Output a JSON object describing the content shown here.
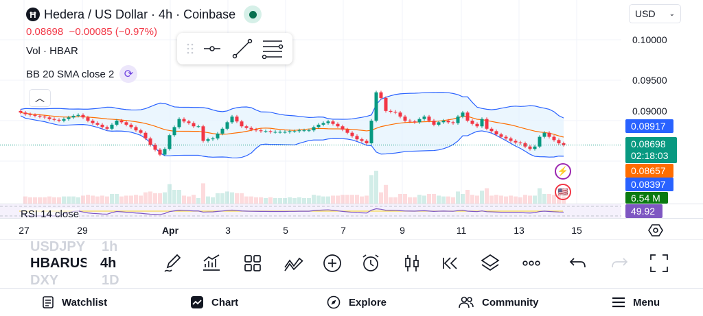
{
  "header": {
    "title": "Hedera / US Dollar · 4h · Coinbase",
    "logo_letter": "Ħ",
    "price_line": "0.08698  −0.00085 (−0.97%)",
    "vol_label": "Vol · HBAR",
    "bb_label": "BB 20 SMA close 2",
    "rsi_label": "RSI 14 close"
  },
  "currency": "USD",
  "colors": {
    "up": "#089981",
    "down": "#f23645",
    "bb_line": "#2962ff",
    "bb_fill": "#e3f2fd",
    "sma": "#ff6d00",
    "rsi": "#7e57c2",
    "rsi_ma": "#f7d94c"
  },
  "price_axis": {
    "labels": [
      "0.10000",
      "0.09500",
      "0.09000"
    ]
  },
  "tags": {
    "bb_upper": "0.08917",
    "last_price": "0.08698",
    "countdown": "02:18:03",
    "bb_basis": "0.08657",
    "bb_lower": "0.08397",
    "volume": "6.54 M",
    "rsi": "49.92"
  },
  "time_axis": [
    "27",
    "29",
    "Apr",
    "3",
    "5",
    "7",
    "9",
    "11",
    "13",
    "15"
  ],
  "symbols": {
    "prev": "USDJPY",
    "current": "HBARUSD",
    "next": "DXY",
    "prev_tf": "1h",
    "current_tf": "4h",
    "next_tf": "1D"
  },
  "toolbar_icons": [
    "pencil-icon",
    "indicators-icon",
    "grid-icon",
    "patterns-icon",
    "add-icon",
    "alarm-icon",
    "candles-icon",
    "replay-icon",
    "layers-icon",
    "more-icon",
    "undo-icon",
    "redo-icon",
    "fullscreen-icon"
  ],
  "nav": [
    {
      "label": "Watchlist",
      "icon": "watchlist-icon"
    },
    {
      "label": "Chart",
      "icon": "chart-icon"
    },
    {
      "label": "Explore",
      "icon": "compass-icon"
    },
    {
      "label": "Community",
      "icon": "community-icon"
    },
    {
      "label": "Menu",
      "icon": "menu-icon"
    }
  ],
  "chart_data": {
    "type": "candlestick",
    "interval": "4h",
    "y_range": [
      0.0845,
      0.1005
    ],
    "closes": [
      0.091,
      0.0908,
      0.0907,
      0.0906,
      0.0905,
      0.0904,
      0.0902,
      0.0901,
      0.09,
      0.0902,
      0.0904,
      0.0906,
      0.0907,
      0.0904,
      0.09,
      0.0897,
      0.0895,
      0.0892,
      0.089,
      0.0895,
      0.09,
      0.0898,
      0.0895,
      0.0892,
      0.0888,
      0.0885,
      0.0878,
      0.087,
      0.0864,
      0.0858,
      0.0865,
      0.0882,
      0.0892,
      0.0902,
      0.0899,
      0.0897,
      0.0893,
      0.0893,
      0.0875,
      0.0877,
      0.0878,
      0.0884,
      0.089,
      0.0898,
      0.0905,
      0.0899,
      0.0893,
      0.0891,
      0.0889,
      0.0888,
      0.0887,
      0.0887,
      0.0886,
      0.0886,
      0.0886,
      0.0886,
      0.0887,
      0.0887,
      0.0888,
      0.0888,
      0.0888,
      0.0892,
      0.0895,
      0.0897,
      0.0899,
      0.0896,
      0.0893,
      0.0889,
      0.0885,
      0.0881,
      0.0877,
      0.0875,
      0.0872,
      0.09,
      0.0935,
      0.0928,
      0.0912,
      0.0911,
      0.091,
      0.0905,
      0.09,
      0.0899,
      0.0898,
      0.0902,
      0.0905,
      0.09,
      0.0895,
      0.0898,
      0.09,
      0.0898,
      0.0897,
      0.0905,
      0.091,
      0.09,
      0.0896,
      0.0893,
      0.0902,
      0.089,
      0.0887,
      0.0883,
      0.088,
      0.0878,
      0.0875,
      0.0873,
      0.0872,
      0.0868,
      0.0865,
      0.0868,
      0.088,
      0.0885,
      0.088,
      0.0876,
      0.0872,
      0.087
    ]
  }
}
